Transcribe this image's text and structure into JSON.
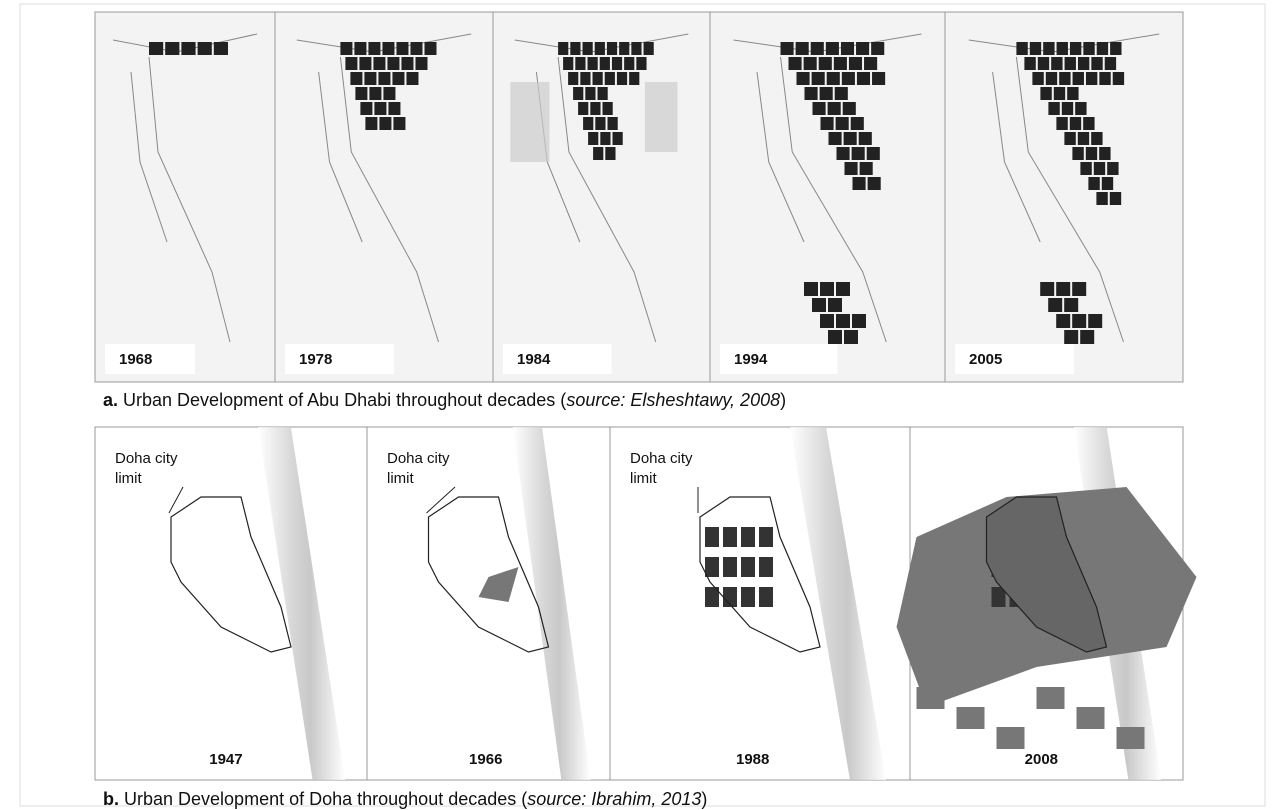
{
  "figure_a": {
    "panels": [
      {
        "year": "1968"
      },
      {
        "year": "1978"
      },
      {
        "year": "1984"
      },
      {
        "year": "1994"
      },
      {
        "year": "2005"
      }
    ],
    "caption": {
      "label": "a.",
      "text": " Urban Development of Abu Dhabi throughout decades (",
      "source": "source: Elsheshtawy, 2008",
      "end": ")"
    }
  },
  "figure_b": {
    "panels": [
      {
        "year": "1947",
        "annotation": [
          "Doha city",
          "limit"
        ]
      },
      {
        "year": "1966",
        "annotation": [
          "Doha city",
          "limit"
        ]
      },
      {
        "year": "1988",
        "annotation": [
          "Doha city",
          "limit"
        ]
      },
      {
        "year": "2008"
      }
    ],
    "caption": {
      "label": "b.",
      "text": " Urban Development of Doha throughout decades (",
      "source": "source: Ibrahim, 2013",
      "end": ")"
    }
  }
}
